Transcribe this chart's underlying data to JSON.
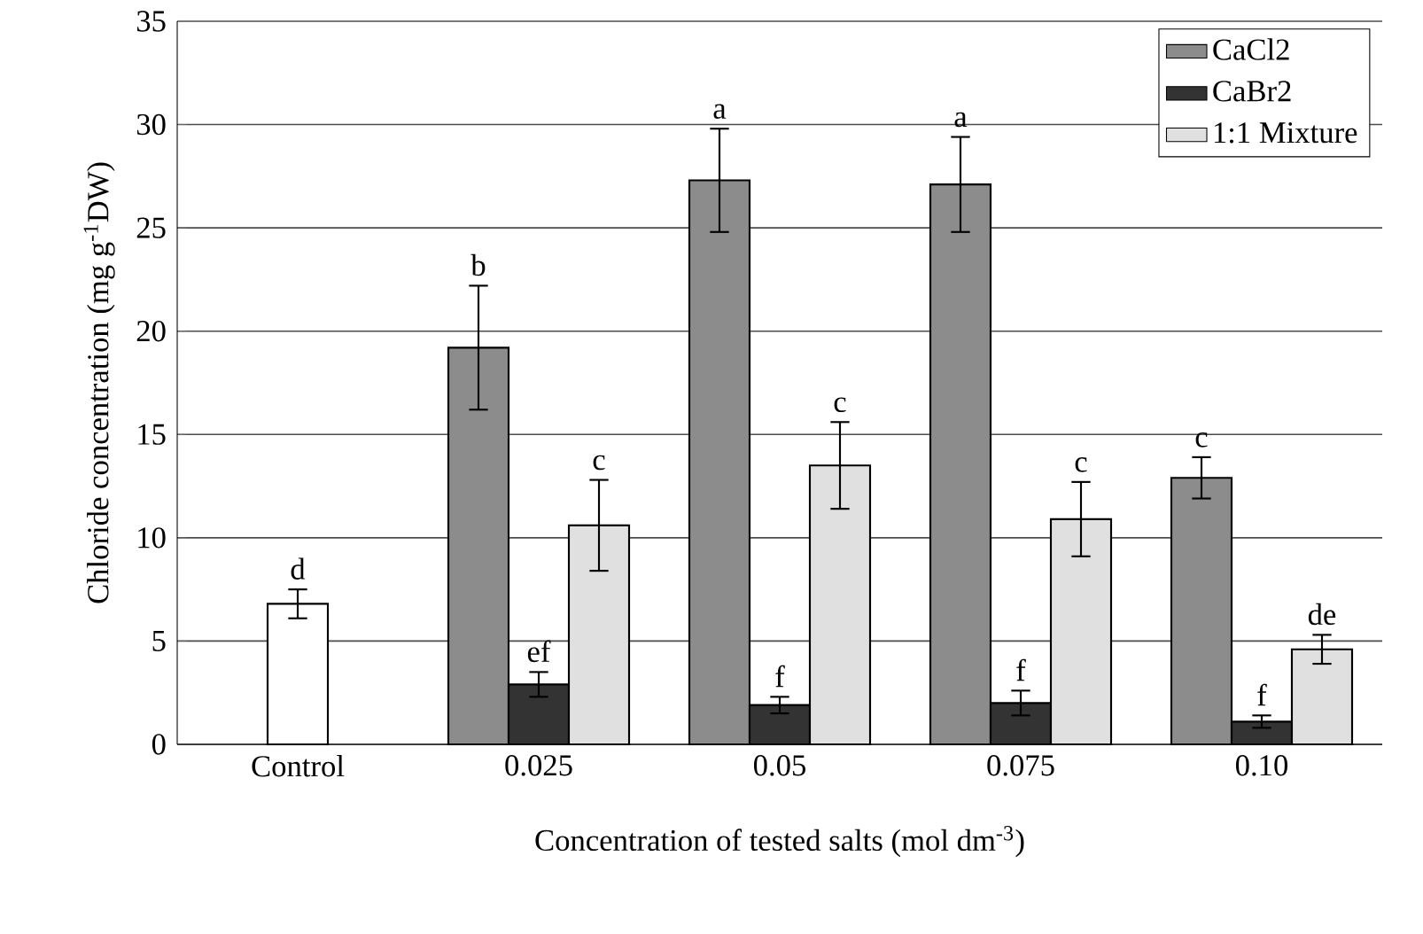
{
  "chart_data": {
    "type": "bar",
    "xlabel": "Concentration of tested salts (mol dm$^{-3}$)",
    "ylabel": "Chloride concentration (mg g$^{-1}$DW)",
    "categories": [
      "Control",
      "0.025",
      "0.05",
      "0.075",
      "0.10"
    ],
    "series": [
      {
        "color": "#ffffff",
        "values": [
          6.8,
          null,
          null,
          null,
          null
        ],
        "errors": [
          0.7,
          null,
          null,
          null,
          null
        ],
        "value_labels": [
          "d",
          null,
          null,
          null,
          null
        ]
      },
      {
        "name": "CaCl2",
        "color": "#8c8c8c",
        "values": [
          null,
          19.2,
          27.3,
          27.1,
          12.9
        ],
        "errors": [
          null,
          3.0,
          2.5,
          2.3,
          1.0
        ],
        "value_labels": [
          null,
          "b",
          "a",
          "a",
          "c"
        ]
      },
      {
        "name": "CaBr2",
        "color": "#333333",
        "values": [
          null,
          2.9,
          1.9,
          2.0,
          1.1
        ],
        "errors": [
          null,
          0.6,
          0.4,
          0.6,
          0.3
        ],
        "value_labels": [
          null,
          "ef",
          "f",
          "f",
          "f"
        ]
      },
      {
        "name": "1:1 Mixture",
        "color": "#e0e0e0",
        "values": [
          null,
          10.6,
          13.5,
          10.9,
          4.6
        ],
        "errors": [
          null,
          2.2,
          2.1,
          1.8,
          0.7
        ],
        "value_labels": [
          null,
          "c",
          "c",
          "c",
          "de"
        ]
      }
    ],
    "ylim": [
      0,
      35
    ],
    "yticks": [
      0,
      5,
      10,
      15,
      20,
      25,
      30,
      35
    ],
    "grid": "y",
    "legend": "top right"
  }
}
